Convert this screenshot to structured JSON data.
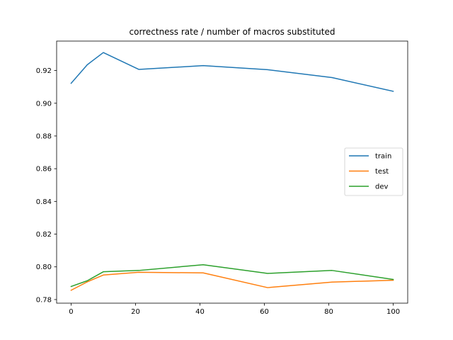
{
  "chart_data": {
    "type": "line",
    "title": "correctness rate / number of macros substituted",
    "xlabel": "",
    "ylabel": "",
    "xlim": [
      -4.5,
      104.5
    ],
    "ylim": [
      0.7778,
      0.938
    ],
    "x_ticks": [
      0,
      20,
      40,
      60,
      80,
      100
    ],
    "x_tick_labels": [
      "0",
      "20",
      "40",
      "60",
      "80",
      "100"
    ],
    "y_ticks": [
      0.78,
      0.8,
      0.82,
      0.84,
      0.86,
      0.88,
      0.9,
      0.92
    ],
    "y_tick_labels": [
      "0.78",
      "0.80",
      "0.82",
      "0.84",
      "0.86",
      "0.88",
      "0.90",
      "0.92"
    ],
    "grid": false,
    "legend_position": "center-right",
    "series": [
      {
        "name": "train",
        "color": "#1f77b4",
        "x": [
          0,
          5,
          10,
          21,
          41,
          61,
          81,
          100
        ],
        "y": [
          0.9122,
          0.9235,
          0.931,
          0.9207,
          0.923,
          0.9205,
          0.9157,
          0.9073
        ]
      },
      {
        "name": "test",
        "color": "#ff7f0e",
        "x": [
          0,
          5,
          10,
          21,
          41,
          61,
          81,
          100
        ],
        "y": [
          0.7857,
          0.7908,
          0.795,
          0.7967,
          0.7963,
          0.7873,
          0.7907,
          0.7918
        ]
      },
      {
        "name": "dev",
        "color": "#2ca02c",
        "x": [
          0,
          5,
          10,
          21,
          41,
          61,
          81,
          100
        ],
        "y": [
          0.788,
          0.7915,
          0.797,
          0.7978,
          0.8013,
          0.796,
          0.7978,
          0.7923
        ]
      }
    ]
  }
}
